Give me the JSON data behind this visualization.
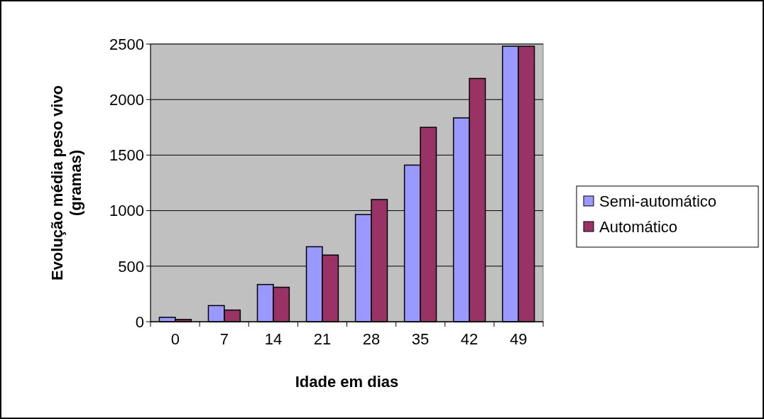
{
  "chart_data": {
    "type": "bar",
    "xlabel": "Idade em dias",
    "ylabel": "Evolução média peso vivo (gramas)",
    "categories": [
      "0",
      "7",
      "14",
      "21",
      "28",
      "35",
      "42",
      "49"
    ],
    "series": [
      {
        "name": "Semi-automático",
        "color": "#9999ff",
        "values": [
          40,
          145,
          335,
          675,
          965,
          1410,
          1835,
          2480
        ]
      },
      {
        "name": "Automático",
        "color": "#993366",
        "values": [
          20,
          105,
          310,
          600,
          1100,
          1750,
          2190,
          2480
        ]
      }
    ],
    "ylim": [
      0,
      2500
    ],
    "yticks": [
      0,
      500,
      1000,
      1500,
      2000,
      2500
    ],
    "grid": "y",
    "legend": "right"
  }
}
